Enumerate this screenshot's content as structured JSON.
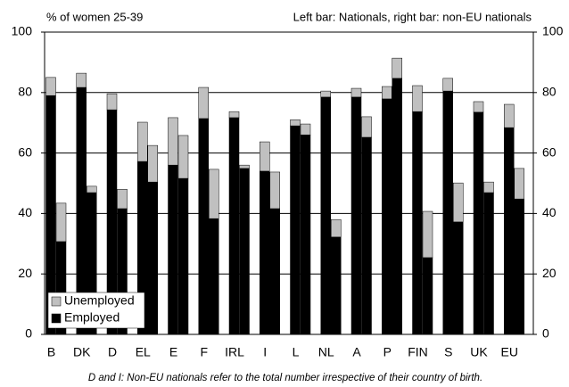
{
  "chart_data": {
    "type": "grouped_stacked_bar",
    "title": "% of women 25-39",
    "subtitle": "Left bar: Nationals, right bar: non-EU nationals",
    "footnote": "D and I: Non-EU nationals refer to the total number irrespective of their country of birth.",
    "categories": [
      "B",
      "DK",
      "D",
      "EL",
      "E",
      "F",
      "IRL",
      "I",
      "L",
      "NL",
      "A",
      "P",
      "FIN",
      "S",
      "UK",
      "EU"
    ],
    "series": [
      {
        "name": "Employed",
        "color": "#000000",
        "values": [
          [
            79,
            30.7
          ],
          [
            81.7,
            46.9
          ],
          [
            74.3,
            41.6
          ],
          [
            57.2,
            50.4
          ],
          [
            56,
            51.6
          ],
          [
            71.4,
            38.3
          ],
          [
            71.7,
            54.9
          ],
          [
            54,
            41.6
          ],
          [
            69,
            66
          ],
          [
            78.5,
            32.2
          ],
          [
            78.5,
            65.2
          ],
          [
            77.9,
            84.7
          ],
          [
            73.7,
            25.4
          ],
          [
            80.5,
            37.2
          ],
          [
            73.5,
            46.9
          ],
          [
            68.4,
            44.8
          ]
        ]
      },
      {
        "name": "Unemployed",
        "color": "#c0c0c0",
        "values": [
          [
            6,
            12.7
          ],
          [
            4.7,
            2.1
          ],
          [
            5.3,
            6.4
          ],
          [
            13,
            12.1
          ],
          [
            15.7,
            14.2
          ],
          [
            10.3,
            16.3
          ],
          [
            2,
            1.1
          ],
          [
            9.7,
            12.1
          ],
          [
            2,
            3.6
          ],
          [
            2,
            5.8
          ],
          [
            2.9,
            6.8
          ],
          [
            4.1,
            6.7
          ],
          [
            8.6,
            15.3
          ],
          [
            4.2,
            12.9
          ],
          [
            3.5,
            3.5
          ],
          [
            7.7,
            10.1
          ]
        ]
      }
    ],
    "ylim": [
      0,
      100
    ],
    "yticks": [
      0,
      20,
      40,
      60,
      80,
      100
    ],
    "grid": true
  }
}
